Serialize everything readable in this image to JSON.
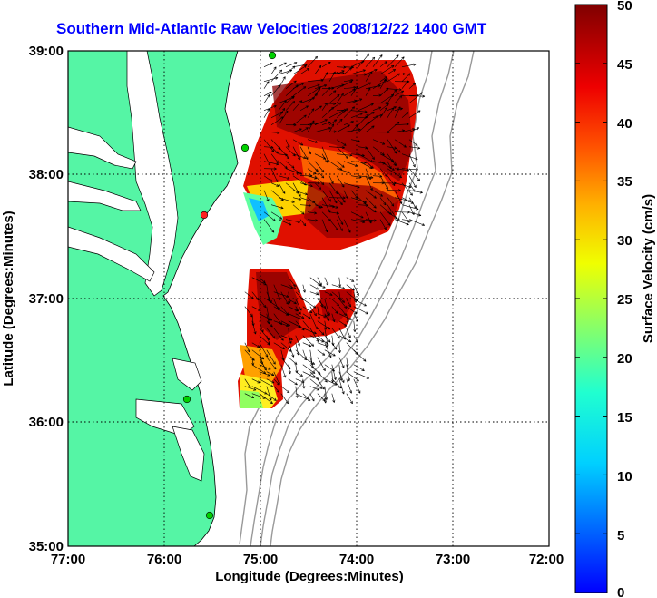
{
  "title": "Southern Mid-Atlantic Raw Velocities 2008/12/22 1400 GMT",
  "x_axis": {
    "label": "Longitude (Degrees:Minutes)",
    "ticks": [
      "77:00",
      "76:00",
      "75:00",
      "74:00",
      "73:00",
      "72:00"
    ]
  },
  "y_axis": {
    "label": "Latitude (Degrees:Minutes)",
    "ticks": [
      "39:00",
      "38:00",
      "37:00",
      "36:00",
      "35:00"
    ]
  },
  "colorbar": {
    "label": "Surface Velocity (cm/s)",
    "ticks": [
      "50",
      "45",
      "40",
      "35",
      "30",
      "25",
      "20",
      "15",
      "10",
      "5",
      "0"
    ],
    "min": 0,
    "max": 50,
    "colormap": "jet"
  },
  "colors": {
    "land": "#55f5a5",
    "title": "#0000ff",
    "station": "#00d000",
    "station_alt": "#ff2020"
  },
  "chart_data": {
    "type": "heatmap",
    "xlim": [
      -77,
      -72
    ],
    "ylim": [
      35,
      39
    ],
    "grid": true,
    "regions": [
      {
        "name": "",
        "lon": [
          -75.0,
          -73.4
        ],
        "lat": [
          37.6,
          38.9
        ]
      },
      {
        "name": "",
        "lon": [
          -75.2,
          -74.0
        ],
        "lat": [
          36.2,
          37.2
        ]
      }
    ]
  }
}
